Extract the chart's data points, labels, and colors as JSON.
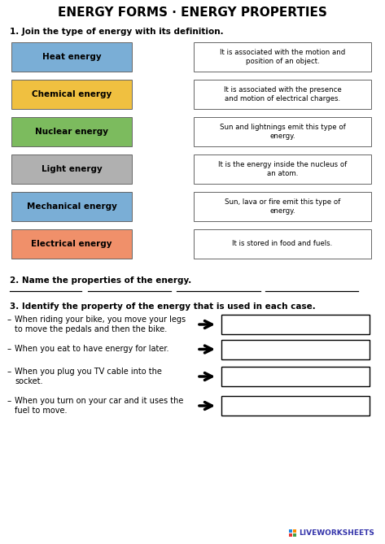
{
  "title": "ENERGY FORMS · ENERGY PROPERTIES",
  "bg_color": "#ffffff",
  "section1_label": "1. Join the type of energy with its definition.",
  "energy_boxes": [
    {
      "label": "Heat energy",
      "color": "#7aaed6"
    },
    {
      "label": "Chemical energy",
      "color": "#f0c040"
    },
    {
      "label": "Nuclear energy",
      "color": "#7cbb5e"
    },
    {
      "label": "Light energy",
      "color": "#b0b0b0"
    },
    {
      "label": "Mechanical energy",
      "color": "#7aaed6"
    },
    {
      "label": "Electrical energy",
      "color": "#f0906a"
    }
  ],
  "definition_boxes": [
    "It is associated with the motion and\nposition of an object.",
    "It is associated with the presence\nand motion of electrical charges.",
    "Sun and lightnings emit this type of\nenergy.",
    "It is the energy inside the nucleus of\nan atom.",
    "Sun, lava or fire emit this type of\nenergy.",
    "It is stored in food and fuels."
  ],
  "section2_label": "2. Name the properties of the energy.",
  "section3_label": "3. Identify the property of the energy that is used in each case.",
  "section3_items": [
    {
      "text": "When riding your bike, you move your legs\nto move the pedals and then the bike.",
      "lines": 2
    },
    {
      "text": "When you eat to have energy for later.",
      "lines": 1
    },
    {
      "text": "When you plug you TV cable into the\nsocket.",
      "lines": 2
    },
    {
      "text": "When you turn on your car and it uses the\nfuel to move.",
      "lines": 2
    }
  ],
  "watermark": "LIVEWORKSHEETS"
}
